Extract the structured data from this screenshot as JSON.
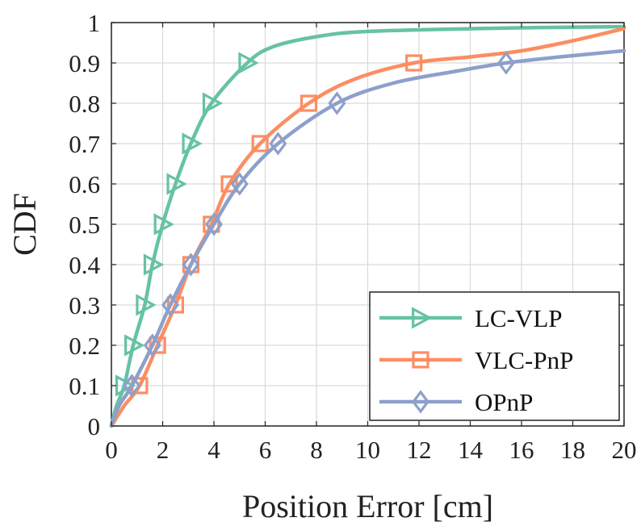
{
  "chart_data": {
    "type": "line",
    "xlabel": "Position Error [cm]",
    "ylabel": "CDF",
    "xlim": [
      0,
      20
    ],
    "ylim": [
      0,
      1
    ],
    "xticks": [
      0,
      2,
      4,
      6,
      8,
      10,
      12,
      14,
      16,
      18,
      20
    ],
    "yticks": [
      0,
      0.1,
      0.2,
      0.3,
      0.4,
      0.5,
      0.6,
      0.7,
      0.8,
      0.9,
      1
    ],
    "xtick_labels": [
      "0",
      "2",
      "4",
      "6",
      "8",
      "10",
      "12",
      "14",
      "16",
      "18",
      "20"
    ],
    "ytick_labels": [
      "0",
      "0.1",
      "0.2",
      "0.3",
      "0.4",
      "0.5",
      "0.6",
      "0.7",
      "0.8",
      "0.9",
      "1"
    ],
    "grid": true,
    "legend_position": "bottom-right",
    "series": [
      {
        "name": "LC-VLP",
        "color": "#66c2a5",
        "marker": "triangle-right",
        "x": [
          0,
          0.2,
          0.5,
          0.85,
          1.3,
          1.6,
          2.0,
          2.5,
          3.1,
          3.9,
          5.3,
          6.3,
          8.0,
          10.0,
          15.0,
          20.0
        ],
        "y": [
          0,
          0.05,
          0.1,
          0.2,
          0.3,
          0.4,
          0.5,
          0.6,
          0.7,
          0.8,
          0.9,
          0.94,
          0.965,
          0.978,
          0.986,
          0.99
        ],
        "markers": [
          [
            0.5,
            0.1
          ],
          [
            0.85,
            0.2
          ],
          [
            1.3,
            0.3
          ],
          [
            1.6,
            0.4
          ],
          [
            2.0,
            0.5
          ],
          [
            2.5,
            0.6
          ],
          [
            3.1,
            0.7
          ],
          [
            3.9,
            0.8
          ],
          [
            5.3,
            0.9
          ]
        ]
      },
      {
        "name": "VLC-PnP",
        "color": "#fc8d62",
        "marker": "square",
        "x": [
          0,
          0.5,
          1.1,
          1.8,
          2.5,
          3.1,
          3.9,
          4.6,
          5.8,
          7.7,
          9.5,
          11.8,
          14.0,
          16.0,
          18.0,
          20.0
        ],
        "y": [
          0,
          0.05,
          0.1,
          0.2,
          0.3,
          0.4,
          0.5,
          0.6,
          0.7,
          0.8,
          0.86,
          0.9,
          0.915,
          0.93,
          0.955,
          0.985
        ],
        "markers": [
          [
            1.1,
            0.1
          ],
          [
            1.8,
            0.2
          ],
          [
            2.5,
            0.3
          ],
          [
            3.1,
            0.4
          ],
          [
            3.9,
            0.5
          ],
          [
            4.6,
            0.6
          ],
          [
            5.8,
            0.7
          ],
          [
            7.7,
            0.8
          ],
          [
            11.8,
            0.9
          ]
        ]
      },
      {
        "name": "OPnP",
        "color": "#8da0cb",
        "marker": "diamond",
        "x": [
          0,
          0.3,
          0.8,
          1.6,
          2.3,
          3.1,
          4.0,
          5.0,
          6.5,
          8.8,
          11.0,
          13.5,
          15.4,
          17.5,
          20.0
        ],
        "y": [
          0,
          0.05,
          0.1,
          0.2,
          0.3,
          0.4,
          0.5,
          0.6,
          0.7,
          0.8,
          0.85,
          0.88,
          0.9,
          0.915,
          0.93
        ],
        "markers": [
          [
            0.8,
            0.1
          ],
          [
            1.6,
            0.2
          ],
          [
            2.3,
            0.3
          ],
          [
            3.1,
            0.4
          ],
          [
            4.0,
            0.5
          ],
          [
            5.0,
            0.6
          ],
          [
            6.5,
            0.7
          ],
          [
            8.8,
            0.8
          ],
          [
            15.4,
            0.9
          ]
        ]
      }
    ]
  }
}
